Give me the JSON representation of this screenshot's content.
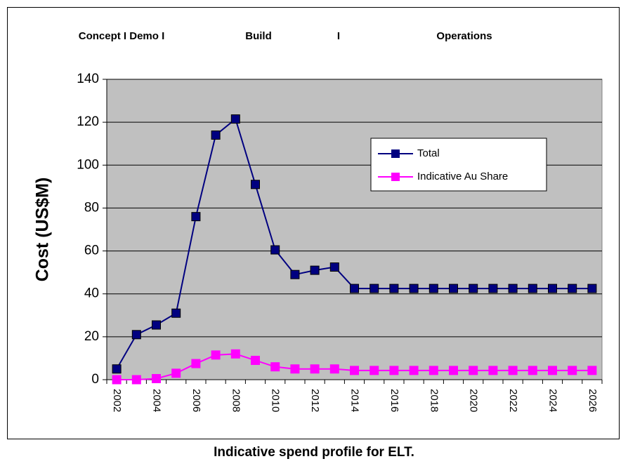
{
  "chart_data": {
    "type": "line",
    "annotations": [
      "Concept  I  Demo I",
      "Build",
      "I",
      "Operations"
    ],
    "ylabel": "Cost (US$M)",
    "caption": "Indicative spend profile for ELT.",
    "categories": [
      "2002",
      null,
      "2004",
      null,
      "2006",
      null,
      "2008",
      null,
      "2010",
      null,
      "2012",
      null,
      "2014",
      null,
      "2016",
      null,
      "2018",
      null,
      "2020",
      null,
      "2022",
      null,
      "2024",
      null,
      "2026"
    ],
    "series": [
      {
        "name": "Total",
        "color": "#000080",
        "values": [
          5,
          21,
          25.5,
          31,
          76,
          114,
          121.5,
          91,
          60.5,
          49,
          51,
          52.5,
          42.5,
          42.5,
          42.5,
          42.5,
          42.5,
          42.5,
          42.5,
          42.5,
          42.5,
          42.5,
          42.5,
          42.5,
          42.5
        ]
      },
      {
        "name": "Indicative Au Share",
        "color": "#ff00ff",
        "values": [
          0,
          0,
          0.5,
          3,
          7.5,
          11.5,
          12,
          9,
          6,
          5,
          5,
          5,
          4.3,
          4.3,
          4.3,
          4.3,
          4.3,
          4.3,
          4.3,
          4.3,
          4.3,
          4.3,
          4.3,
          4.3,
          4.3
        ]
      }
    ],
    "ylim": [
      0,
      140
    ],
    "yticks": [
      0,
      20,
      40,
      60,
      80,
      100,
      120,
      140
    ],
    "grid": true,
    "plot_background": "#c0c0c0",
    "legend": "upper right"
  }
}
